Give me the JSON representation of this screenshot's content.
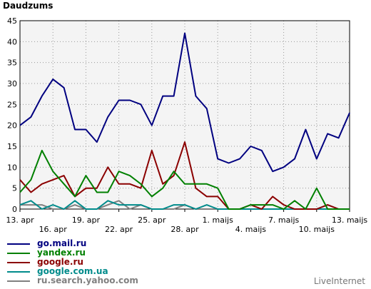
{
  "page": {
    "title": "Daudzums",
    "watermark": "LiveInternet"
  },
  "chart_data": {
    "type": "line",
    "title": "Daudzums",
    "ylim": [
      0,
      45
    ],
    "yticks": [
      0,
      5,
      10,
      15,
      20,
      25,
      30,
      35,
      40,
      45
    ],
    "xlabels": [
      "13. apr",
      "16. apr",
      "19. apr",
      "22. apr",
      "25. apr",
      "28. apr",
      "1. maijs",
      "4. maijs",
      "7. maijs",
      "10. maijs",
      "13. maijs"
    ],
    "grid": true,
    "legend_position": "bottom-left",
    "series": [
      {
        "name": "go.mail.ru",
        "color": "#000080",
        "values": [
          20,
          22,
          27,
          31,
          29,
          19,
          19,
          16,
          22,
          26,
          26,
          25,
          20,
          27,
          27,
          42,
          27,
          24,
          12,
          11,
          12,
          15,
          14,
          9,
          10,
          12,
          19,
          12,
          18,
          17,
          23
        ]
      },
      {
        "name": "yandex.ru",
        "color": "#008000",
        "values": [
          4,
          7,
          14,
          9,
          6,
          3,
          8,
          4,
          4,
          9,
          8,
          6,
          3,
          5,
          9,
          6,
          6,
          6,
          5,
          0,
          0,
          1,
          1,
          1,
          0,
          2,
          0,
          5,
          0,
          0,
          0
        ]
      },
      {
        "name": "google.ru",
        "color": "#8b0000",
        "values": [
          7,
          4,
          6,
          7,
          8,
          3,
          5,
          5,
          10,
          6,
          6,
          5,
          14,
          6,
          8,
          16,
          5,
          3,
          3,
          0,
          0,
          1,
          0,
          3,
          1,
          0,
          0,
          0,
          1,
          0,
          0
        ]
      },
      {
        "name": "google.com.ua",
        "color": "#008b8b",
        "values": [
          1,
          2,
          0,
          1,
          0,
          2,
          0,
          0,
          2,
          1,
          1,
          1,
          0,
          0,
          1,
          1,
          0,
          1,
          0,
          0,
          0,
          0,
          0,
          0,
          0,
          0,
          0,
          0,
          0,
          0,
          0
        ]
      },
      {
        "name": "ru.search.yahoo.com",
        "color": "#808080",
        "values": [
          1,
          1,
          1,
          0,
          0,
          1,
          0,
          0,
          1,
          2,
          0,
          1,
          0,
          0,
          0,
          1,
          0,
          0,
          0,
          0,
          0,
          0,
          0,
          0,
          0,
          0,
          0,
          0,
          1,
          0,
          0
        ]
      }
    ]
  }
}
